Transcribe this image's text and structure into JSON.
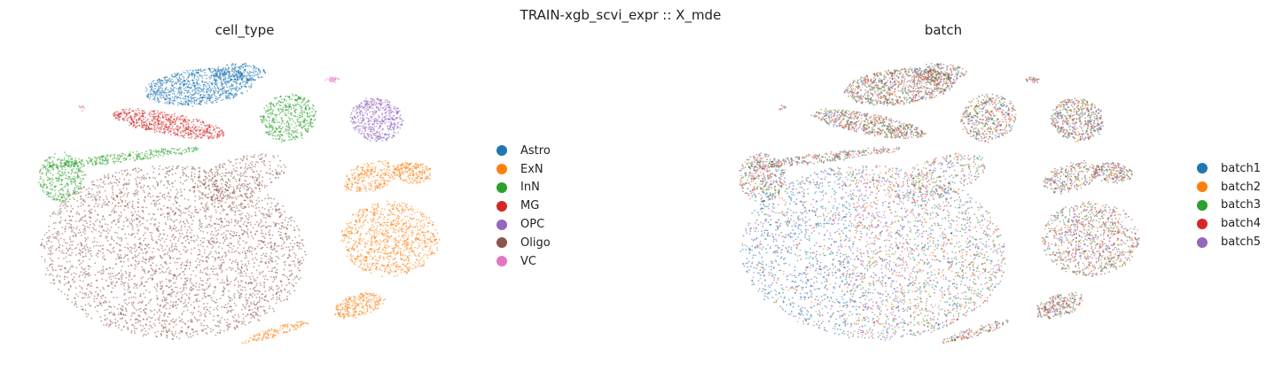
{
  "suptitle": "TRAIN-xgb_scvi_expr :: X_mde",
  "chart_data": [
    {
      "type": "scatter",
      "title": "cell_type",
      "xlabel": "",
      "ylabel": "",
      "grid": false,
      "axes": "off",
      "legend_placement": "right",
      "legend": [
        {
          "label": "Astro",
          "color": "#1f77b4"
        },
        {
          "label": "ExN",
          "color": "#ff7f0e"
        },
        {
          "label": "InN",
          "color": "#2ca02c"
        },
        {
          "label": "MG",
          "color": "#d62728"
        },
        {
          "label": "OPC",
          "color": "#9467bd"
        },
        {
          "label": "Oligo",
          "color": "#8c564b"
        },
        {
          "label": "VC",
          "color": "#e377c2"
        }
      ]
    },
    {
      "type": "scatter",
      "title": "batch",
      "xlabel": "",
      "ylabel": "",
      "grid": false,
      "axes": "off",
      "legend_placement": "right",
      "legend": [
        {
          "label": "batch1",
          "color": "#1f77b4"
        },
        {
          "label": "batch2",
          "color": "#ff7f0e"
        },
        {
          "label": "batch3",
          "color": "#2ca02c"
        },
        {
          "label": "batch4",
          "color": "#d62728"
        },
        {
          "label": "batch5",
          "color": "#9467bd"
        }
      ]
    }
  ]
}
